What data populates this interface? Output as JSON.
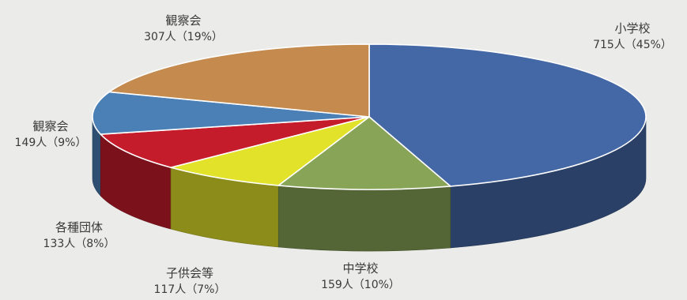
{
  "chart_data": {
    "type": "pie",
    "style": "3d",
    "title": "",
    "unit": "人",
    "slices": [
      {
        "label": "小学校",
        "count": 715,
        "percent": 45,
        "display": "715人（45%）",
        "color": "#4468a6"
      },
      {
        "label": "中学校",
        "count": 159,
        "percent": 10,
        "display": "159人（10%）",
        "color": "#88a457"
      },
      {
        "label": "子供会等",
        "count": 117,
        "percent": 7,
        "display": "117人（7%）",
        "color": "#e2e22a"
      },
      {
        "label": "各種団体",
        "count": 133,
        "percent": 8,
        "display": "133人（8%）",
        "color": "#c51c2c"
      },
      {
        "label": "観察会",
        "count": 149,
        "percent": 9,
        "display": "149人（9%）",
        "color": "#4a80b6"
      },
      {
        "label": "観察会",
        "count": 307,
        "percent": 19,
        "display": "307人（19%）",
        "color": "#c48a4e"
      }
    ]
  }
}
